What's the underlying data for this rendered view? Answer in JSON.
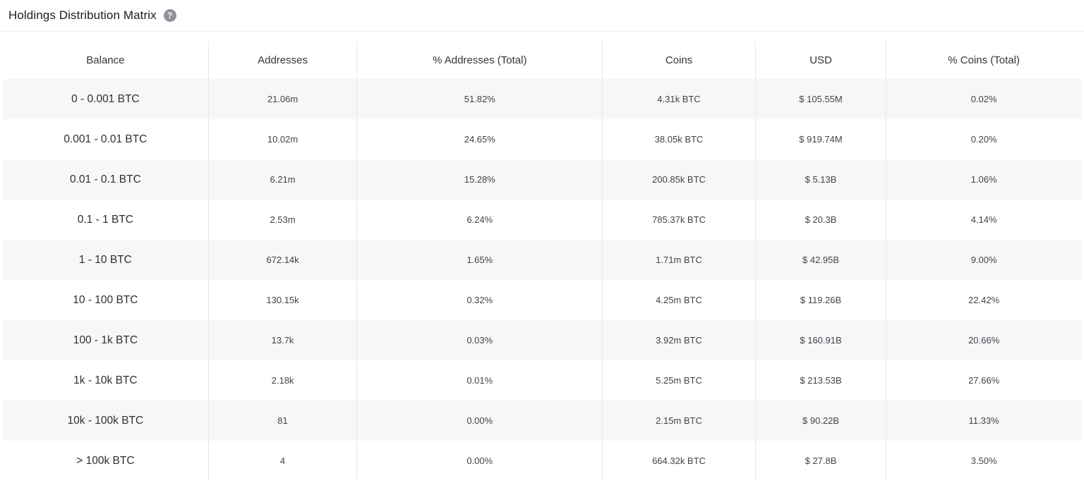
{
  "header": {
    "title": "Holdings Distribution Matrix",
    "help_glyph": "?"
  },
  "table": {
    "columns": [
      "Balance",
      "Addresses",
      "% Addresses (Total)",
      "Coins",
      "USD",
      "% Coins (Total)"
    ],
    "rows": [
      {
        "balance": "0 - 0.001 BTC",
        "addresses": "21.06m",
        "pct_addresses": "51.82%",
        "coins": "4.31k BTC",
        "usd": "$ 105.55M",
        "pct_coins": "0.02%"
      },
      {
        "balance": "0.001 - 0.01 BTC",
        "addresses": "10.02m",
        "pct_addresses": "24.65%",
        "coins": "38.05k BTC",
        "usd": "$ 919.74M",
        "pct_coins": "0.20%"
      },
      {
        "balance": "0.01 - 0.1 BTC",
        "addresses": "6.21m",
        "pct_addresses": "15.28%",
        "coins": "200.85k BTC",
        "usd": "$ 5.13B",
        "pct_coins": "1.06%"
      },
      {
        "balance": "0.1 - 1 BTC",
        "addresses": "2.53m",
        "pct_addresses": "6.24%",
        "coins": "785.37k BTC",
        "usd": "$ 20.3B",
        "pct_coins": "4.14%"
      },
      {
        "balance": "1 - 10 BTC",
        "addresses": "672.14k",
        "pct_addresses": "1.65%",
        "coins": "1.71m BTC",
        "usd": "$ 42.95B",
        "pct_coins": "9.00%"
      },
      {
        "balance": "10 - 100 BTC",
        "addresses": "130.15k",
        "pct_addresses": "0.32%",
        "coins": "4.25m BTC",
        "usd": "$ 119.26B",
        "pct_coins": "22.42%"
      },
      {
        "balance": "100 - 1k BTC",
        "addresses": "13.7k",
        "pct_addresses": "0.03%",
        "coins": "3.92m BTC",
        "usd": "$ 160.91B",
        "pct_coins": "20.66%"
      },
      {
        "balance": "1k - 10k BTC",
        "addresses": "2.18k",
        "pct_addresses": "0.01%",
        "coins": "5.25m BTC",
        "usd": "$ 213.53B",
        "pct_coins": "27.66%"
      },
      {
        "balance": "10k - 100k BTC",
        "addresses": "81",
        "pct_addresses": "0.00%",
        "coins": "2.15m BTC",
        "usd": "$ 90.22B",
        "pct_coins": "11.33%"
      },
      {
        "balance": "> 100k BTC",
        "addresses": "4",
        "pct_addresses": "0.00%",
        "coins": "664.32k BTC",
        "usd": "$ 27.8B",
        "pct_coins": "3.50%"
      }
    ]
  },
  "colors": {
    "row_stripe": "#f7f7f8",
    "column_divider": "#e7e8ea",
    "title_text": "#1c1c21",
    "help_icon_bg": "#90909a"
  }
}
